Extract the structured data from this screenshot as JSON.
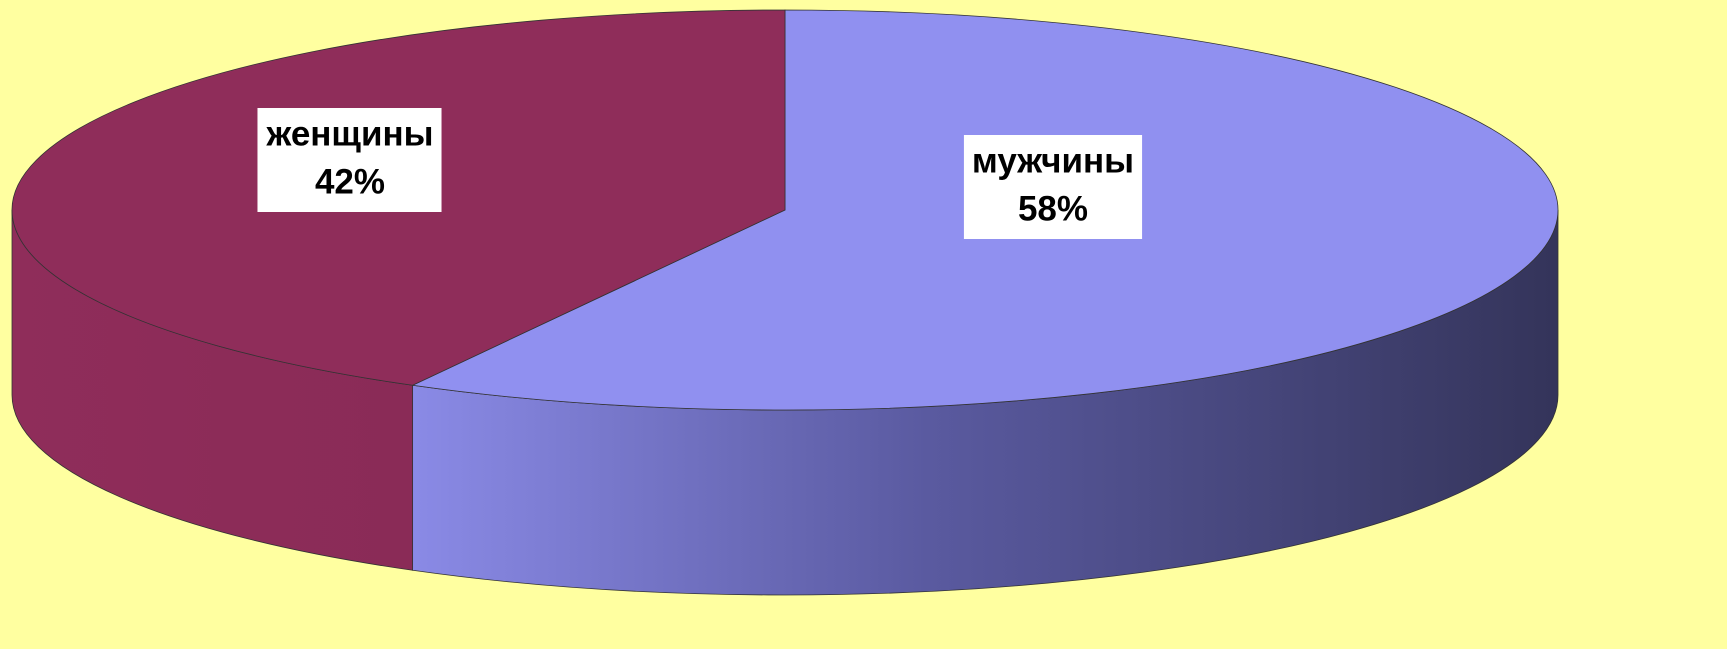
{
  "chart_data": {
    "type": "pie3d",
    "categories": [
      "мужчины",
      "женщины"
    ],
    "values": [
      58,
      42
    ],
    "value_labels": [
      "58%",
      "42%"
    ],
    "colors": [
      "#9090f0",
      "#8f2d5a"
    ]
  }
}
